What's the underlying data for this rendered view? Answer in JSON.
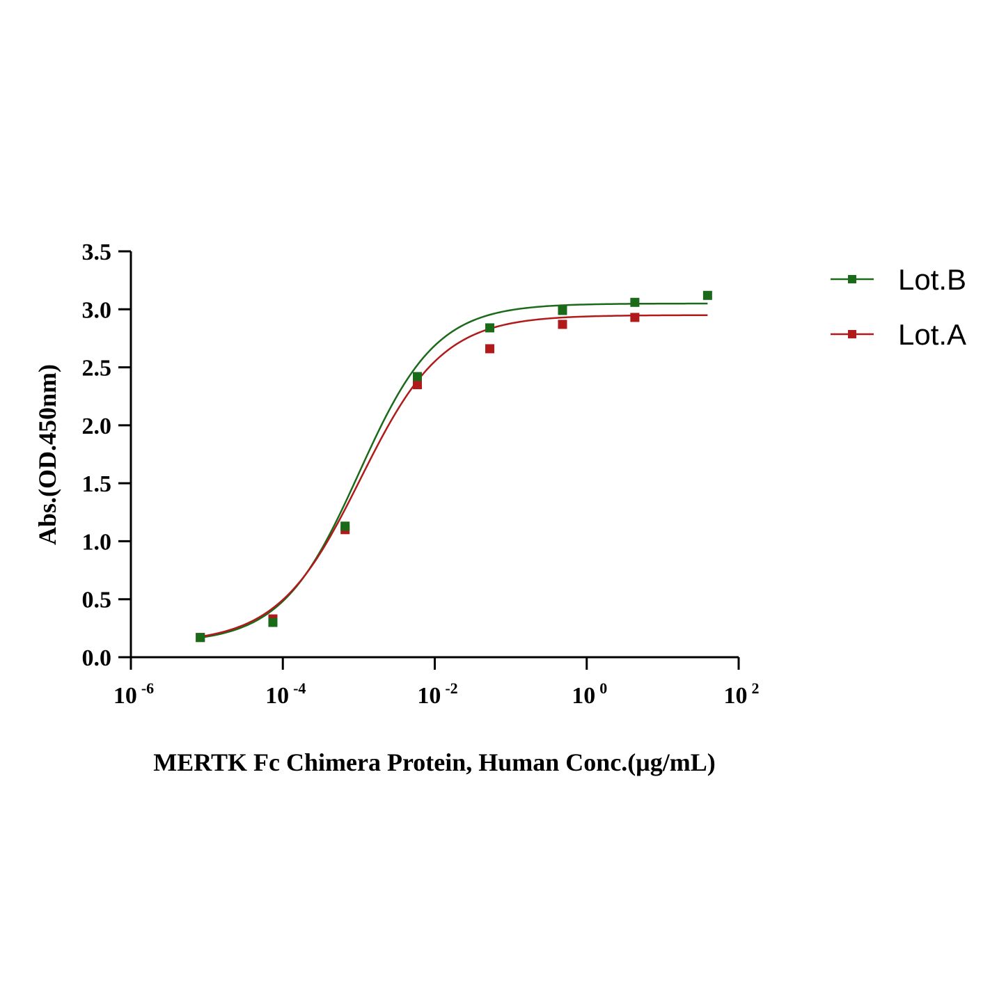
{
  "chart_data": {
    "type": "scatter",
    "title": "",
    "xlabel": "MERTK Fc Chimera Protein, Human  Conc.(μg/mL)",
    "ylabel": "Abs.(OD.450nm)",
    "xscale": "log",
    "xlim": [
      1e-06,
      100
    ],
    "ylim": [
      0,
      3.5
    ],
    "x_ticks": [
      {
        "base": "10",
        "exp": "-6",
        "value": 1e-06
      },
      {
        "base": "10",
        "exp": "-4",
        "value": 0.0001
      },
      {
        "base": "10",
        "exp": "-2",
        "value": 0.01
      },
      {
        "base": "10",
        "exp": "0",
        "value": 1
      },
      {
        "base": "10",
        "exp": "2",
        "value": 100
      }
    ],
    "y_ticks": [
      "0.0",
      "0.5",
      "1.0",
      "1.5",
      "2.0",
      "2.5",
      "3.0",
      "3.5"
    ],
    "y_tick_values": [
      0,
      0.5,
      1,
      1.5,
      2,
      2.5,
      3,
      3.5
    ],
    "grid": false,
    "legend_position": "top-right",
    "series": [
      {
        "name": "Lot.B",
        "color": "#1a6a1a",
        "marker": "square",
        "x": [
          8.2e-06,
          7.4e-05,
          0.00066,
          0.0059,
          0.053,
          0.48,
          4.3,
          39
        ],
        "y": [
          0.17,
          0.3,
          1.13,
          2.42,
          2.84,
          2.99,
          3.06,
          3.12
        ],
        "fit": {
          "model": "4PL",
          "bottom": 0.12,
          "top": 3.05,
          "log_ec50": -3.0,
          "hill": 0.85
        }
      },
      {
        "name": "Lot.A",
        "color": "#b01a1a",
        "marker": "square",
        "x": [
          8.2e-06,
          7.4e-05,
          0.00066,
          0.0059,
          0.053,
          0.48,
          4.3
        ],
        "y": [
          0.17,
          0.33,
          1.1,
          2.35,
          2.66,
          2.87,
          2.93
        ],
        "fit": {
          "model": "4PL",
          "bottom": 0.12,
          "top": 2.95,
          "log_ec50": -2.98,
          "hill": 0.8
        }
      }
    ]
  }
}
